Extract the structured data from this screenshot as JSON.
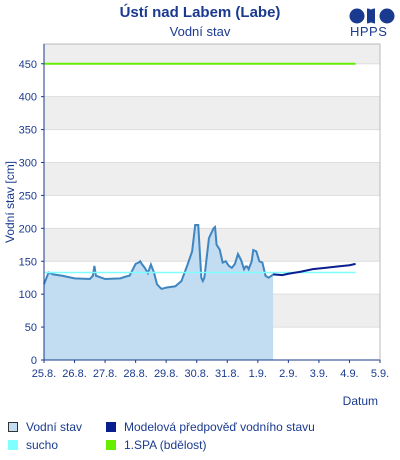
{
  "header": {
    "title": "Ústí nad Labem (Labe)",
    "subtitle": "Vodní stav",
    "logo_text": "HPPS"
  },
  "colors": {
    "observed_fill": "#c2dcf2",
    "observed_line": "#3f86c0",
    "forecast": "#0a1f8f",
    "drought": "#7fffff",
    "spa1": "#66ee00",
    "band": "#eeeeee",
    "axis": "#1a3a8f"
  },
  "chart_data": {
    "type": "line",
    "ylabel": "Vodní stav [cm]",
    "xlabel": "Datum",
    "ylim": [
      0,
      480
    ],
    "xlim": [
      0,
      11
    ],
    "y_ticks": [
      0,
      50,
      100,
      150,
      200,
      250,
      300,
      350,
      400,
      450
    ],
    "x_ticks": [
      "25.8.",
      "26.8.",
      "27.8.",
      "28.8.",
      "29.8.",
      "30.8.",
      "31.8.",
      "1.9.",
      "2.9.",
      "3.9.",
      "4.9.",
      "5.9."
    ],
    "series": [
      {
        "name": "Vodní stav",
        "style": "area",
        "x": [
          0.0,
          0.15,
          0.3,
          0.6,
          1.0,
          1.5,
          1.6,
          1.65,
          1.7,
          2.0,
          2.5,
          2.7,
          2.8,
          3.0,
          3.1,
          3.15,
          3.2,
          3.3,
          3.4,
          3.5,
          3.6,
          3.7,
          3.8,
          3.85,
          4.0,
          4.3,
          4.5,
          4.7,
          4.85,
          4.95,
          5.05,
          5.15,
          5.2,
          5.25,
          5.4,
          5.55,
          5.6,
          5.65,
          5.75,
          5.85,
          5.95,
          6.05,
          6.15,
          6.25,
          6.35,
          6.45,
          6.55,
          6.6,
          6.65,
          6.7,
          6.8,
          6.85,
          6.95,
          7.05,
          7.15,
          7.25,
          7.35,
          7.45,
          7.5
        ],
        "values": [
          115,
          133,
          130,
          128,
          124,
          123,
          128,
          143,
          128,
          123,
          124,
          127,
          128,
          146,
          148,
          150,
          146,
          140,
          132,
          145,
          133,
          115,
          110,
          108,
          110,
          112,
          120,
          145,
          165,
          205,
          205,
          125,
          120,
          125,
          185,
          200,
          202,
          175,
          168,
          148,
          150,
          143,
          140,
          146,
          161,
          152,
          138,
          142,
          142,
          138,
          150,
          167,
          165,
          150,
          148,
          128,
          125,
          128,
          130
        ]
      },
      {
        "name": "Modelová předpověď vodního stavu",
        "style": "line",
        "x": [
          7.5,
          7.8,
          8.0,
          8.4,
          8.8,
          9.2,
          9.6,
          10.0,
          10.2
        ],
        "values": [
          130,
          129,
          131,
          134,
          138,
          140,
          142,
          144,
          146
        ]
      },
      {
        "name": "sucho",
        "style": "line",
        "x": [
          0,
          10.2
        ],
        "values": [
          133,
          133
        ]
      },
      {
        "name": "1.SPA (bdělost)",
        "style": "line",
        "x": [
          0,
          10.2
        ],
        "values": [
          450,
          450
        ]
      }
    ]
  },
  "legend": [
    {
      "label": "Vodní stav"
    },
    {
      "label": "Modelová předpověď vodního stavu"
    },
    {
      "label": "sucho"
    },
    {
      "label": "1.SPA (bdělost)"
    }
  ]
}
